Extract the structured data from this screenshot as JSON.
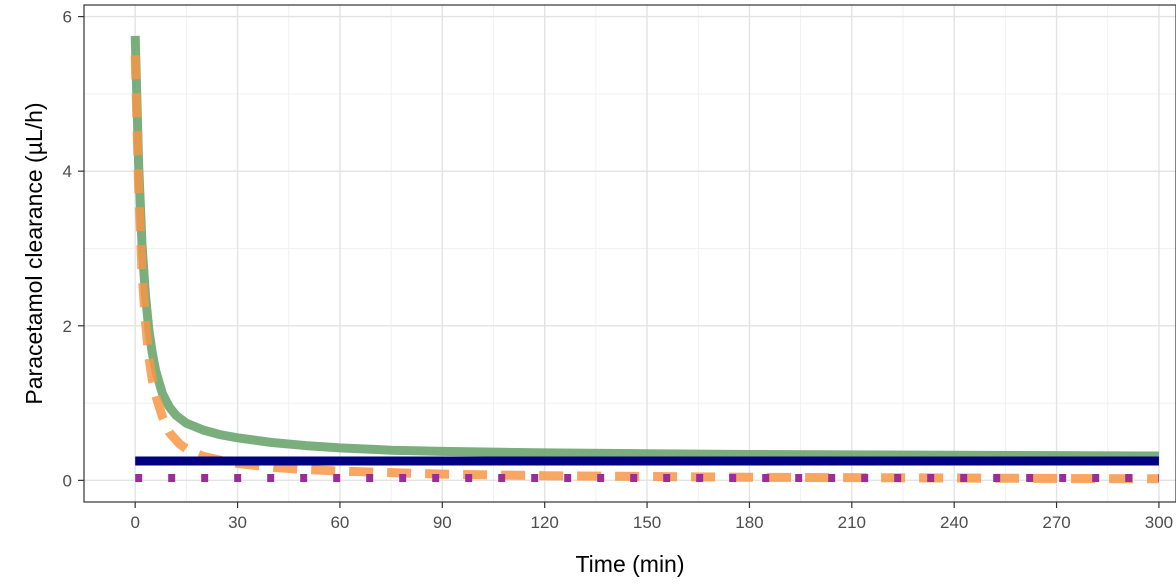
{
  "chart_data": {
    "type": "line",
    "title": "",
    "xlabel": "Time (min)",
    "ylabel": "Paracetamol clearance (µL/h)",
    "xlim": [
      -15,
      305
    ],
    "ylim": [
      -0.28,
      6.15
    ],
    "xticks": [
      0,
      30,
      60,
      90,
      120,
      150,
      180,
      210,
      240,
      270,
      300
    ],
    "yticks": [
      0,
      2,
      4,
      6
    ],
    "grid": true,
    "legend": "none",
    "series": [
      {
        "color": "#6ba56e",
        "style": "solid",
        "x": [
          0,
          1,
          2,
          3,
          4,
          5,
          6,
          8,
          10,
          12,
          15,
          20,
          25,
          30,
          40,
          50,
          60,
          75,
          90,
          105,
          120,
          150,
          180,
          210,
          240,
          270,
          300
        ],
        "y": [
          5.75,
          4.1,
          3.05,
          2.4,
          1.95,
          1.65,
          1.42,
          1.12,
          0.95,
          0.84,
          0.74,
          0.65,
          0.59,
          0.55,
          0.49,
          0.45,
          0.42,
          0.39,
          0.375,
          0.365,
          0.355,
          0.345,
          0.335,
          0.33,
          0.325,
          0.32,
          0.315
        ]
      },
      {
        "color": "#f79646",
        "style": "dashed",
        "x": [
          0,
          1,
          2,
          3,
          4,
          5,
          6,
          8,
          10,
          13,
          16,
          20,
          25,
          30,
          40,
          50,
          60,
          75,
          90,
          105,
          120,
          150,
          180,
          210,
          240,
          270,
          300
        ],
        "y": [
          5.5,
          3.8,
          2.7,
          2.05,
          1.6,
          1.3,
          1.1,
          0.82,
          0.62,
          0.47,
          0.38,
          0.31,
          0.26,
          0.22,
          0.17,
          0.14,
          0.12,
          0.1,
          0.08,
          0.07,
          0.06,
          0.05,
          0.04,
          0.035,
          0.03,
          0.025,
          0.02
        ]
      },
      {
        "color": "#000080",
        "style": "solid",
        "x": [
          0,
          300
        ],
        "y": [
          0.25,
          0.25
        ]
      },
      {
        "color": "#9b2d9b",
        "style": "dotted",
        "x": [
          0,
          300
        ],
        "y": [
          0.03,
          0.03
        ]
      }
    ]
  }
}
